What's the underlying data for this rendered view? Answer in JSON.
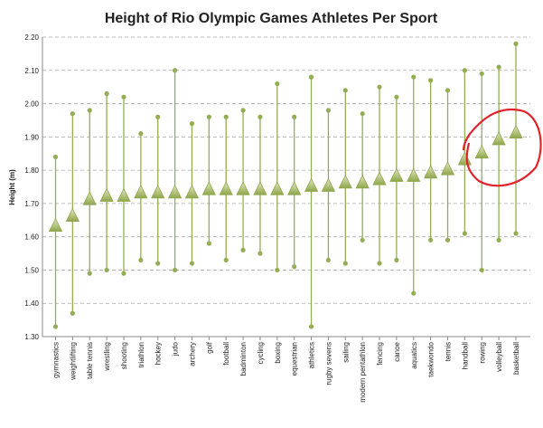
{
  "chart_data": {
    "type": "range",
    "title": "Height of Rio Olympic Games Athletes Per Sport",
    "ylabel": "Height (m)",
    "xlabel": "",
    "ylim": [
      1.3,
      2.2
    ],
    "ytick_step": 0.1,
    "grid": true,
    "legend": "none",
    "categories": [
      "gymnastics",
      "weightlifting",
      "table tennis",
      "wrestling",
      "shooting",
      "triathlon",
      "hockey",
      "judo",
      "archery",
      "golf",
      "football",
      "badminton",
      "cycling",
      "boxing",
      "equestrian",
      "athletics",
      "rugby sevens",
      "sailing",
      "modern pentathlon",
      "fencing",
      "canoe",
      "aquatics",
      "taekwondo",
      "tennis",
      "handball",
      "rowing",
      "volleyball",
      "basketball"
    ],
    "series": [
      {
        "values": [
          1.63,
          1.66,
          1.71,
          1.72,
          1.72,
          1.73,
          1.73,
          1.73,
          1.73,
          1.74,
          1.74,
          1.74,
          1.74,
          1.74,
          1.74,
          1.75,
          1.75,
          1.76,
          1.76,
          1.77,
          1.78,
          1.78,
          1.79,
          1.8,
          1.83,
          1.85,
          1.89,
          1.91
        ]
      },
      {
        "values": [
          1.84,
          1.97,
          1.98,
          2.03,
          2.02,
          1.91,
          1.96,
          2.1,
          1.94,
          1.96,
          1.96,
          1.98,
          1.96,
          2.06,
          1.96,
          2.08,
          1.98,
          2.04,
          1.97,
          2.05,
          2.02,
          2.08,
          2.07,
          2.04,
          2.1,
          2.09,
          2.11,
          2.18
        ]
      },
      {
        "values": [
          1.33,
          1.37,
          1.49,
          1.5,
          1.49,
          1.53,
          1.52,
          1.5,
          1.52,
          1.58,
          1.53,
          1.56,
          1.55,
          1.5,
          1.51,
          1.33,
          1.53,
          1.52,
          1.59,
          1.52,
          1.53,
          1.43,
          1.59,
          1.59,
          1.61,
          1.5,
          1.59,
          1.61
        ]
      }
    ],
    "colors": {
      "marker": "#9db45a",
      "whisker": "#93ae52",
      "grid": "#a9a9a9",
      "annotation": "#e0232c"
    },
    "annotation": "red hand-drawn circle around handball, rowing, volleyball, basketball"
  }
}
